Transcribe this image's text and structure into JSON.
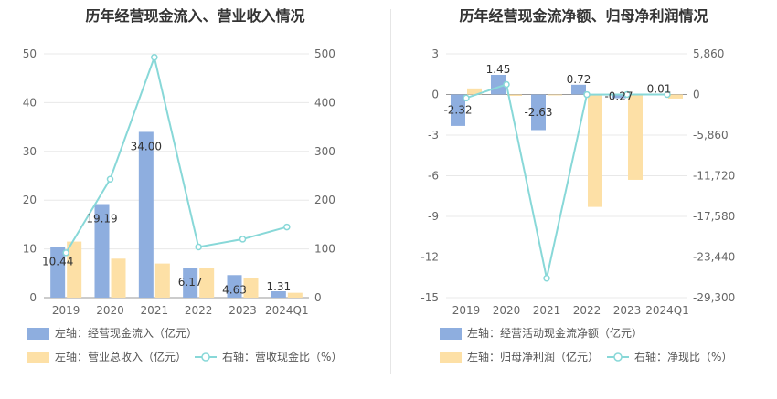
{
  "chart_data": [
    {
      "type": "bar",
      "title": "历年经营现金流入、营业收入情况",
      "categories": [
        "2019",
        "2020",
        "2021",
        "2022",
        "2023",
        "2024Q1"
      ],
      "left_axis": {
        "ylim": [
          0,
          50
        ],
        "ticks": [
          "0",
          "10",
          "20",
          "30",
          "40",
          "50"
        ]
      },
      "right_axis": {
        "ylim": [
          0,
          500
        ],
        "ticks": [
          "0",
          "100",
          "200",
          "300",
          "400",
          "500"
        ]
      },
      "series": [
        {
          "name": "左轴：经营现金流入（亿元）",
          "kind": "bar",
          "axis": "left",
          "color": "#8eaedf",
          "values": [
            10.44,
            19.19,
            34.0,
            6.17,
            4.63,
            1.31
          ],
          "labels": [
            "10.44",
            "19.19",
            "34.00",
            "6.17",
            "4.63",
            "1.31"
          ]
        },
        {
          "name": "左轴：营业总收入（亿元）",
          "kind": "bar",
          "axis": "left",
          "color": "#fde0a6",
          "values": [
            11.5,
            8.0,
            7.0,
            6.0,
            4.0,
            1.0
          ]
        },
        {
          "name": "右轴：营收现金比（%）",
          "kind": "line",
          "axis": "right",
          "color": "#88d8d8",
          "values": [
            92,
            243,
            493,
            104,
            120,
            145
          ]
        }
      ],
      "grid": true,
      "legend_position": "bottom"
    },
    {
      "type": "bar",
      "title": "历年经营现金流净额、归母净利润情况",
      "categories": [
        "2019",
        "2020",
        "2021",
        "2022",
        "2023",
        "2024Q1"
      ],
      "left_axis": {
        "ylim": [
          -15,
          3
        ],
        "ticks": [
          "-15",
          "-12",
          "-9",
          "-6",
          "-3",
          "0",
          "3"
        ]
      },
      "right_axis": {
        "ylim": [
          -29300,
          5860
        ],
        "ticks": [
          "-29,300",
          "-23,440",
          "-17,580",
          "-11,720",
          "-5,860",
          "0",
          "5,860"
        ]
      },
      "series": [
        {
          "name": "左轴：经营活动现金流净额（亿元）",
          "kind": "bar",
          "axis": "left",
          "color": "#8eaedf",
          "values": [
            -2.32,
            1.45,
            -2.63,
            0.72,
            -0.27,
            0.01
          ],
          "labels": [
            "-2.32",
            "1.45",
            "-2.63",
            "0.72",
            "-0.27",
            "0.01"
          ]
        },
        {
          "name": "左轴：归母净利润（亿元）",
          "kind": "bar",
          "axis": "left",
          "color": "#fde0a6",
          "values": [
            0.45,
            -0.1,
            -0.05,
            -8.3,
            -6.3,
            -0.3
          ]
        },
        {
          "name": "右轴：净现比（%）",
          "kind": "line",
          "axis": "right",
          "color": "#88d8d8",
          "values": [
            -500,
            1450,
            -26500,
            -10,
            5,
            0
          ]
        }
      ],
      "grid": true,
      "legend_position": "bottom"
    }
  ]
}
